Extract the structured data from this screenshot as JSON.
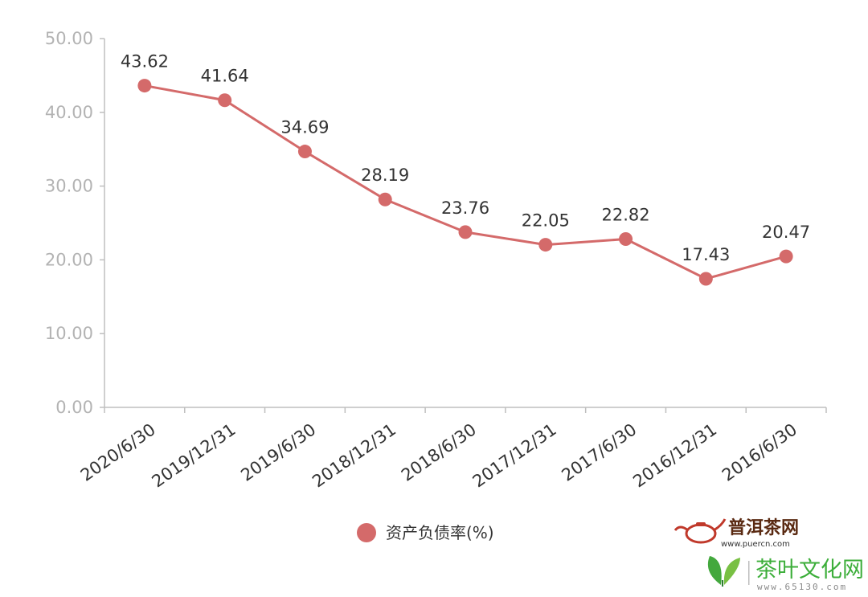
{
  "chart_data": {
    "type": "line",
    "categories": [
      "2020/6/30",
      "2019/12/31",
      "2019/6/30",
      "2018/12/31",
      "2018/6/30",
      "2017/12/31",
      "2017/6/30",
      "2016/12/31",
      "2016/6/30"
    ],
    "series": [
      {
        "name": "资产负债率(%)",
        "values": [
          43.62,
          41.64,
          34.69,
          28.19,
          23.76,
          22.05,
          22.82,
          17.43,
          20.47
        ],
        "labels": [
          "43.62",
          "41.64",
          "34.69",
          "28.19",
          "23.76",
          "22.05",
          "22.82",
          "17.43",
          "20.47"
        ]
      }
    ],
    "y_ticks": [
      "0.00",
      "10.00",
      "20.00",
      "30.00",
      "40.00",
      "50.00"
    ],
    "ylim": [
      0,
      50
    ],
    "grid": false,
    "legend_position": "bottom-center",
    "colors": {
      "line": "#d46a6a",
      "axis": "#bfbfbf",
      "ytick": "#b3b3b3",
      "text": "#333333"
    }
  },
  "watermark": {
    "site1_name": "普洱茶网",
    "site1_url": "www.puercn.com",
    "site2_name": "茶叶文化网",
    "site2_url": "www.65130.com",
    "site1_icon": "teapot-logo-icon",
    "site2_icon": "tea-leaf-logo-icon"
  }
}
